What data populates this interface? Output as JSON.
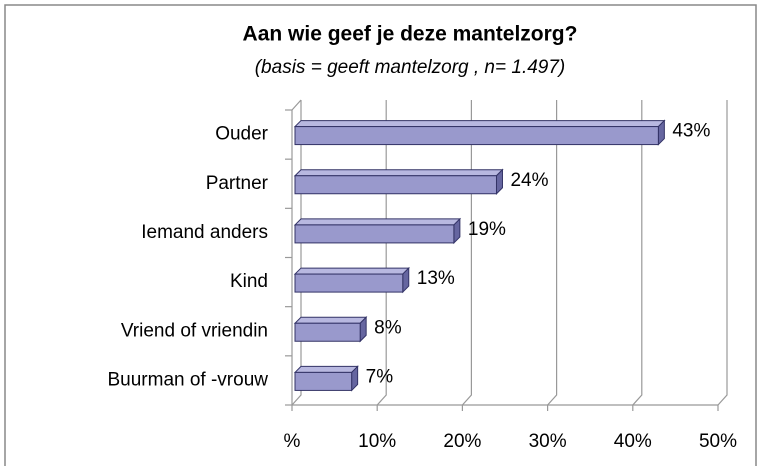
{
  "chart_data": {
    "type": "bar",
    "orientation": "horizontal",
    "title": "Aan wie geef je deze mantelzorg?",
    "subtitle": "(basis = geeft mantelzorg  , n= 1.497)",
    "categories": [
      "Ouder",
      "Partner",
      "Iemand anders",
      "Kind",
      "Vriend of vriendin",
      "Buurman of -vrouw"
    ],
    "values": [
      43,
      24,
      19,
      13,
      8,
      7
    ],
    "value_labels": [
      "43%",
      "24%",
      "19%",
      "13%",
      "8%",
      "7%"
    ],
    "color": "#9999cc",
    "xlim": [
      0,
      50
    ],
    "xticks": [
      {
        "value": 0,
        "label": "%"
      },
      {
        "value": 10,
        "label": "10%"
      },
      {
        "value": 20,
        "label": "20%"
      },
      {
        "value": 30,
        "label": "30%"
      },
      {
        "value": 40,
        "label": "40%"
      },
      {
        "value": 50,
        "label": "50%"
      }
    ],
    "grid": true
  }
}
